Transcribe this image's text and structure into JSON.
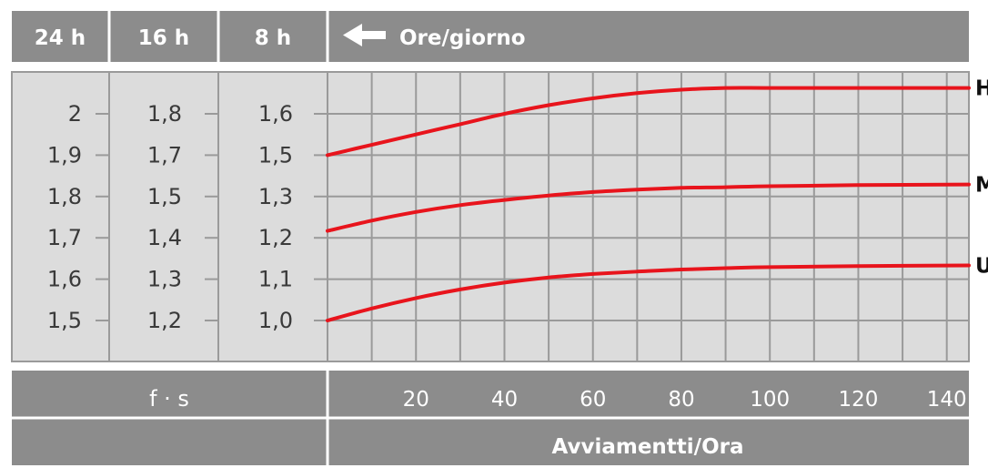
{
  "header": {
    "col1": "24 h",
    "col2": "16 h",
    "col3": "8 h",
    "axis_title": "Ore/giorno"
  },
  "footer": {
    "factor_label": "f · s",
    "x_axis_title": "Avviamentti/Ora"
  },
  "colors": {
    "panel_gray": "#8c8c8c",
    "chart_bg": "#dcdcdc",
    "grid": "#9a9a9a",
    "curve": "#e8141c"
  },
  "chart_data": {
    "type": "line",
    "xlabel": "Avviamentti/Ora",
    "x_ticks": [
      20,
      40,
      60,
      80,
      100,
      120,
      140
    ],
    "xlim": [
      0,
      145
    ],
    "y_scales": [
      {
        "label": "24 h",
        "ticks": [
          "2",
          "1,9",
          "1,8",
          "1,7",
          "1,6",
          "1,5"
        ]
      },
      {
        "label": "16 h",
        "ticks": [
          "1,8",
          "1,7",
          "1,5",
          "1,4",
          "1,3",
          "1,2"
        ]
      },
      {
        "label": "8 h",
        "ticks": [
          "1,6",
          "1,5",
          "1,3",
          "1,2",
          "1,1",
          "1,0"
        ]
      }
    ],
    "ylim_8h": [
      1.0,
      1.6
    ],
    "series": [
      {
        "name": "H",
        "x": [
          0,
          10,
          20,
          30,
          40,
          50,
          60,
          70,
          80,
          90,
          100,
          120,
          145
        ],
        "values": [
          1.48,
          1.51,
          1.54,
          1.57,
          1.6,
          1.625,
          1.645,
          1.66,
          1.67,
          1.675,
          1.675,
          1.675,
          1.675
        ]
      },
      {
        "name": "M",
        "x": [
          0,
          10,
          20,
          30,
          40,
          50,
          60,
          70,
          80,
          90,
          100,
          120,
          145
        ],
        "values": [
          1.26,
          1.29,
          1.315,
          1.335,
          1.35,
          1.363,
          1.373,
          1.38,
          1.385,
          1.387,
          1.39,
          1.393,
          1.395
        ]
      },
      {
        "name": "U",
        "x": [
          0,
          10,
          20,
          30,
          40,
          50,
          60,
          70,
          80,
          90,
          100,
          120,
          145
        ],
        "values": [
          1.0,
          1.035,
          1.065,
          1.09,
          1.11,
          1.125,
          1.135,
          1.142,
          1.148,
          1.152,
          1.155,
          1.158,
          1.16
        ]
      }
    ]
  }
}
